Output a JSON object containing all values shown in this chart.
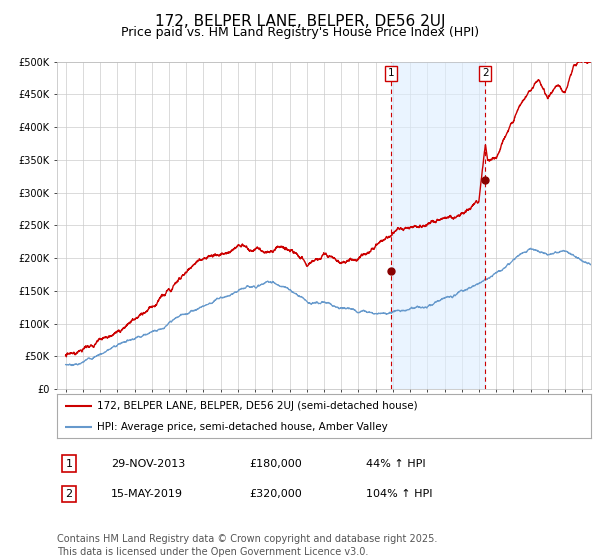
{
  "title": "172, BELPER LANE, BELPER, DE56 2UJ",
  "subtitle": "Price paid vs. HM Land Registry's House Price Index (HPI)",
  "title_fontsize": 11,
  "subtitle_fontsize": 9,
  "background_color": "#ffffff",
  "plot_bg_color": "#ffffff",
  "grid_color": "#cccccc",
  "ylim": [
    0,
    500000
  ],
  "xlim_start": 1994.5,
  "xlim_end": 2025.5,
  "yticks": [
    0,
    50000,
    100000,
    150000,
    200000,
    250000,
    300000,
    350000,
    400000,
    450000,
    500000
  ],
  "ytick_labels": [
    "£0",
    "£50K",
    "£100K",
    "£150K",
    "£200K",
    "£250K",
    "£300K",
    "£350K",
    "£400K",
    "£450K",
    "£500K"
  ],
  "xticks": [
    1995,
    1996,
    1997,
    1998,
    1999,
    2000,
    2001,
    2002,
    2003,
    2004,
    2005,
    2006,
    2007,
    2008,
    2009,
    2010,
    2011,
    2012,
    2013,
    2014,
    2015,
    2016,
    2017,
    2018,
    2019,
    2020,
    2021,
    2022,
    2023,
    2024,
    2025
  ],
  "red_line_color": "#cc0000",
  "blue_line_color": "#6699cc",
  "shade_color": "#ddeeff",
  "dashed_line_color": "#cc0000",
  "marker_color": "#880000",
  "event1_x": 2013.91,
  "event1_y": 180000,
  "event2_x": 2019.37,
  "event2_y": 320000,
  "label1": "1",
  "label2": "2",
  "legend_entries": [
    "172, BELPER LANE, BELPER, DE56 2UJ (semi-detached house)",
    "HPI: Average price, semi-detached house, Amber Valley"
  ],
  "table_rows": [
    {
      "num": "1",
      "date": "29-NOV-2013",
      "price": "£180,000",
      "hpi": "44% ↑ HPI"
    },
    {
      "num": "2",
      "date": "15-MAY-2019",
      "price": "£320,000",
      "hpi": "104% ↑ HPI"
    }
  ],
  "footer": "Contains HM Land Registry data © Crown copyright and database right 2025.\nThis data is licensed under the Open Government Licence v3.0.",
  "footer_fontsize": 7
}
